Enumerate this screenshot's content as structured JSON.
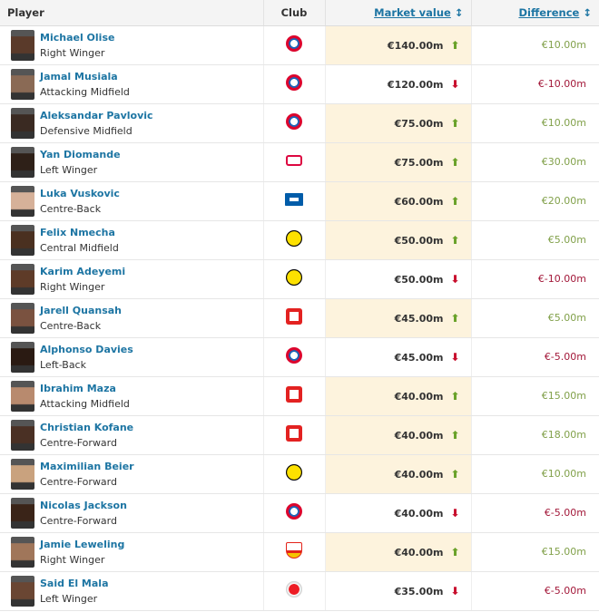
{
  "header": {
    "player": "Player",
    "club": "Club",
    "market_value": "Market value",
    "difference": "Difference",
    "sort_icon": "↕"
  },
  "colors": {
    "link": "#1d75a3",
    "up_bg": "#fdf3dd",
    "up": "#6aa22a",
    "down": "#c8102e"
  },
  "rows": [
    {
      "name": "Michael Olise",
      "position": "Right Winger",
      "club": "bayern",
      "value": "€140.00m",
      "trend": "up",
      "diff": "€10.00m"
    },
    {
      "name": "Jamal Musiala",
      "position": "Attacking Midfield",
      "club": "bayern",
      "value": "€120.00m",
      "trend": "down",
      "diff": "€-10.00m"
    },
    {
      "name": "Aleksandar Pavlovic",
      "position": "Defensive Midfield",
      "club": "bayern",
      "value": "€75.00m",
      "trend": "up",
      "diff": "€10.00m"
    },
    {
      "name": "Yan Diomande",
      "position": "Left Winger",
      "club": "leipzig",
      "value": "€75.00m",
      "trend": "up",
      "diff": "€30.00m"
    },
    {
      "name": "Luka Vuskovic",
      "position": "Centre-Back",
      "club": "hamburg",
      "value": "€60.00m",
      "trend": "up",
      "diff": "€20.00m"
    },
    {
      "name": "Felix Nmecha",
      "position": "Central Midfield",
      "club": "dortmund",
      "value": "€50.00m",
      "trend": "up",
      "diff": "€5.00m"
    },
    {
      "name": "Karim Adeyemi",
      "position": "Right Winger",
      "club": "dortmund",
      "value": "€50.00m",
      "trend": "down",
      "diff": "€-10.00m"
    },
    {
      "name": "Jarell Quansah",
      "position": "Centre-Back",
      "club": "leverkusen",
      "value": "€45.00m",
      "trend": "up",
      "diff": "€5.00m"
    },
    {
      "name": "Alphonso Davies",
      "position": "Left-Back",
      "club": "bayern",
      "value": "€45.00m",
      "trend": "down",
      "diff": "€-5.00m"
    },
    {
      "name": "Ibrahim Maza",
      "position": "Attacking Midfield",
      "club": "leverkusen",
      "value": "€40.00m",
      "trend": "up",
      "diff": "€15.00m"
    },
    {
      "name": "Christian Kofane",
      "position": "Centre-Forward",
      "club": "leverkusen",
      "value": "€40.00m",
      "trend": "up",
      "diff": "€18.00m"
    },
    {
      "name": "Maximilian Beier",
      "position": "Centre-Forward",
      "club": "dortmund",
      "value": "€40.00m",
      "trend": "up",
      "diff": "€10.00m"
    },
    {
      "name": "Nicolas Jackson",
      "position": "Centre-Forward",
      "club": "bayern",
      "value": "€40.00m",
      "trend": "down",
      "diff": "€-5.00m"
    },
    {
      "name": "Jamie Leweling",
      "position": "Right Winger",
      "club": "stuttgart",
      "value": "€40.00m",
      "trend": "up",
      "diff": "€15.00m"
    },
    {
      "name": "Said El Mala",
      "position": "Left Winger",
      "club": "koeln",
      "value": "€35.00m",
      "trend": "down",
      "diff": "€-5.00m"
    }
  ]
}
